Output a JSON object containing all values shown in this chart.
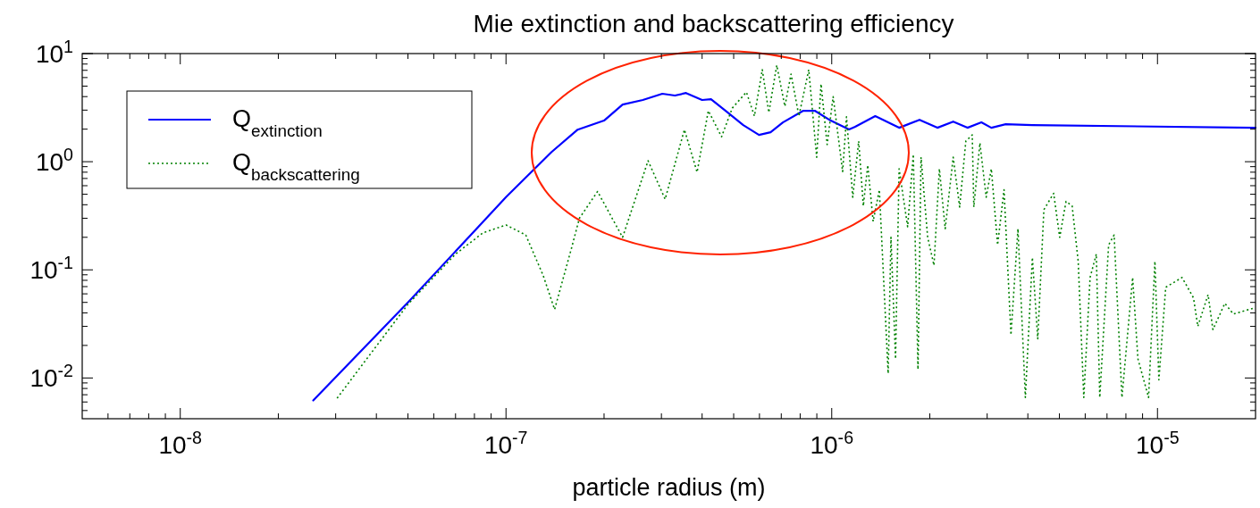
{
  "chart_data": {
    "type": "line",
    "title": "Mie extinction and backscattering efficiency",
    "xlabel": "particle radius (m)",
    "log": "xy",
    "legend": "top left",
    "grid": false,
    "xlim": [
      5e-09,
      2e-05
    ],
    "ylim": [
      0.0042,
      10
    ],
    "xticks": [
      {
        "value": 6e-09,
        "label": null
      },
      {
        "value": 7e-09,
        "label": null
      },
      {
        "value": 8e-09,
        "label": null
      },
      {
        "value": 9e-09,
        "label": null
      },
      {
        "value": 1e-08,
        "label": "10$^{-8}$"
      },
      {
        "value": 2e-08,
        "label": null
      },
      {
        "value": 3e-08,
        "label": null
      },
      {
        "value": 4e-08,
        "label": null
      },
      {
        "value": 5e-08,
        "label": null
      },
      {
        "value": 6e-08,
        "label": null
      },
      {
        "value": 7e-08,
        "label": null
      },
      {
        "value": 8e-08,
        "label": null
      },
      {
        "value": 9e-08,
        "label": null
      },
      {
        "value": 1e-07,
        "label": "10$^{-7}$"
      },
      {
        "value": 2e-07,
        "label": null
      },
      {
        "value": 3e-07,
        "label": null
      },
      {
        "value": 4e-07,
        "label": null
      },
      {
        "value": 5e-07,
        "label": null
      },
      {
        "value": 6e-07,
        "label": null
      },
      {
        "value": 7e-07,
        "label": null
      },
      {
        "value": 8e-07,
        "label": null
      },
      {
        "value": 9e-07,
        "label": null
      },
      {
        "value": 1e-06,
        "label": "10$^{-6}$"
      },
      {
        "value": 2e-06,
        "label": null
      },
      {
        "value": 3e-06,
        "label": null
      },
      {
        "value": 4e-06,
        "label": null
      },
      {
        "value": 5e-06,
        "label": null
      },
      {
        "value": 6e-06,
        "label": null
      },
      {
        "value": 7e-06,
        "label": null
      },
      {
        "value": 8e-06,
        "label": null
      },
      {
        "value": 9e-06,
        "label": null
      },
      {
        "value": 1e-05,
        "label": "10$^{-5}$"
      }
    ],
    "yticks": [
      {
        "value": 0.005,
        "label": null
      },
      {
        "value": 0.006,
        "label": null
      },
      {
        "value": 0.007,
        "label": null
      },
      {
        "value": 0.008,
        "label": null
      },
      {
        "value": 0.009,
        "label": null
      },
      {
        "value": 0.01,
        "label": "10$^{-2}$"
      },
      {
        "value": 0.02,
        "label": null
      },
      {
        "value": 0.03,
        "label": null
      },
      {
        "value": 0.04,
        "label": null
      },
      {
        "value": 0.05,
        "label": null
      },
      {
        "value": 0.06,
        "label": null
      },
      {
        "value": 0.07,
        "label": null
      },
      {
        "value": 0.08,
        "label": null
      },
      {
        "value": 0.09,
        "label": null
      },
      {
        "value": 0.1,
        "label": "10$^{-1}$"
      },
      {
        "value": 0.2,
        "label": null
      },
      {
        "value": 0.3,
        "label": null
      },
      {
        "value": 0.4,
        "label": null
      },
      {
        "value": 0.5,
        "label": null
      },
      {
        "value": 0.6,
        "label": null
      },
      {
        "value": 0.7,
        "label": null
      },
      {
        "value": 0.8,
        "label": null
      },
      {
        "value": 0.9,
        "label": null
      },
      {
        "value": 1,
        "label": "10$^{0}$"
      },
      {
        "value": 2,
        "label": null
      },
      {
        "value": 3,
        "label": null
      },
      {
        "value": 4,
        "label": null
      },
      {
        "value": 5,
        "label": null
      },
      {
        "value": 6,
        "label": null
      },
      {
        "value": 7,
        "label": null
      },
      {
        "value": 8,
        "label": null
      },
      {
        "value": 9,
        "label": null
      },
      {
        "value": 10,
        "label": "10$^{1}$"
      }
    ],
    "series": [
      {
        "name": "Q$_{extinction}$",
        "color": "#0000ff",
        "line_style": "solid",
        "x": [
          2.56e-08,
          5e-08,
          1e-07,
          1.38e-07,
          1.66e-07,
          2e-07,
          2.28e-07,
          2.63e-07,
          3.02e-07,
          3.3e-07,
          3.57e-07,
          4e-07,
          4.26e-07,
          4.76e-07,
          5.35e-07,
          5.98e-07,
          6.49e-07,
          7.08e-07,
          8.18e-07,
          8.87e-07,
          9.93e-07,
          1.13e-06,
          1.18e-06,
          1.36e-06,
          1.61e-06,
          1.86e-06,
          2.11e-06,
          2.36e-06,
          2.61e-06,
          2.88e-06,
          3.09e-06,
          3.42e-06,
          4.13e-06,
          2e-05
        ],
        "values": [
          0.0062,
          0.05,
          0.47,
          1.23,
          1.98,
          2.4,
          3.38,
          3.72,
          4.25,
          4.09,
          4.32,
          3.72,
          3.79,
          2.9,
          2.18,
          1.77,
          1.87,
          2.31,
          2.96,
          2.96,
          2.4,
          1.99,
          2.1,
          2.64,
          2.06,
          2.44,
          2.06,
          2.35,
          2.06,
          2.31,
          2.06,
          2.22,
          2.18,
          2.06
        ]
      },
      {
        "name": "Q$_{backscattering}$",
        "color": "#008000",
        "line_style": "dotted",
        "x": [
          3.03e-08,
          5e-08,
          7e-08,
          8.5e-08,
          1e-07,
          1.15e-07,
          1.3e-07,
          1.41e-07,
          1.59e-07,
          1.68e-07,
          1.91e-07,
          2.28e-07,
          2.73e-07,
          3.08e-07,
          3.53e-07,
          3.86e-07,
          4.18e-07,
          4.59e-07,
          4.95e-07,
          5.47e-07,
          5.79e-07,
          6.12e-07,
          6.41e-07,
          6.78e-07,
          7.18e-07,
          7.5e-07,
          7.93e-07,
          8.5e-07,
          8.99e-07,
          9.27e-07,
          9.68e-07,
          1.01e-06,
          1.08e-06,
          1.11e-06,
          1.16e-06,
          1.21e-06,
          1.25e-06,
          1.29e-06,
          1.34e-06,
          1.4e-06,
          1.49e-06,
          1.52e-06,
          1.57e-06,
          1.61e-06,
          1.71e-06,
          1.78e-06,
          1.84e-06,
          1.88e-06,
          1.97e-06,
          2.06e-06,
          2.14e-06,
          2.23e-06,
          2.36e-06,
          2.47e-06,
          2.58e-06,
          2.7e-06,
          2.73e-06,
          2.85e-06,
          2.98e-06,
          3.09e-06,
          3.23e-06,
          3.38e-06,
          3.55e-06,
          3.73e-06,
          3.93e-06,
          4.13e-06,
          4.29e-06,
          4.48e-06,
          4.8e-06,
          5.01e-06,
          5.24e-06,
          5.47e-06,
          5.71e-06,
          5.94e-06,
          6.21e-06,
          6.49e-06,
          6.65e-06,
          7.08e-06,
          7.36e-06,
          7.78e-06,
          8.39e-06,
          8.71e-06,
          9.39e-06,
          9.82e-06,
          1.01e-05,
          1.06e-05,
          1.19e-05,
          1.29e-05,
          1.33e-05,
          1.43e-05,
          1.48e-05,
          1.61e-05,
          1.71e-05,
          1.96e-05
        ],
        "values": [
          0.0065,
          0.048,
          0.14,
          0.22,
          0.26,
          0.21,
          0.089,
          0.043,
          0.16,
          0.3,
          0.53,
          0.2,
          1.02,
          0.45,
          1.98,
          0.8,
          2.96,
          1.7,
          3.13,
          4.4,
          2.64,
          7.1,
          2.85,
          7.8,
          3.25,
          6.46,
          2.64,
          7.1,
          1.1,
          5.24,
          1.44,
          4.0,
          0.81,
          2.6,
          0.47,
          1.55,
          0.39,
          0.93,
          0.28,
          0.55,
          0.011,
          0.2,
          0.015,
          0.86,
          0.25,
          1.17,
          0.012,
          1.1,
          0.2,
          0.11,
          0.86,
          0.24,
          1.1,
          0.38,
          1.55,
          1.77,
          0.38,
          1.49,
          0.47,
          0.86,
          0.17,
          0.55,
          0.025,
          0.24,
          0.0066,
          0.13,
          0.023,
          0.36,
          0.51,
          0.2,
          0.43,
          0.39,
          0.12,
          0.0066,
          0.085,
          0.14,
          0.0066,
          0.17,
          0.21,
          0.0066,
          0.085,
          0.015,
          0.0066,
          0.12,
          0.0096,
          0.069,
          0.085,
          0.055,
          0.03,
          0.059,
          0.028,
          0.049,
          0.039,
          0.044
        ]
      }
    ]
  }
}
